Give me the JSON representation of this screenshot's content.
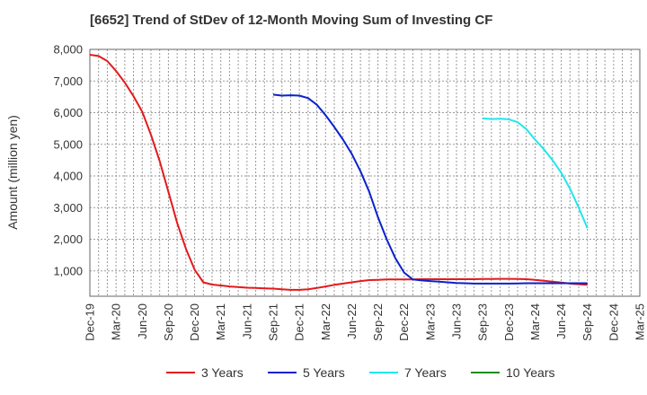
{
  "chart_data": {
    "type": "line",
    "title": "[6652]  Trend of StDev of 12-Month Moving Sum of Investing CF",
    "xlabel": "",
    "ylabel": "Amount (million yen)",
    "ylim": [
      200,
      8000
    ],
    "yticks": [
      1000,
      2000,
      3000,
      4000,
      5000,
      6000,
      7000,
      8000
    ],
    "ytick_labels": [
      "1,000",
      "2,000",
      "3,000",
      "4,000",
      "5,000",
      "6,000",
      "7,000",
      "8,000"
    ],
    "x_start": "Dec-19",
    "x_end": "Mar-25",
    "xtick_labels": [
      "Dec-19",
      "Mar-20",
      "Jun-20",
      "Sep-20",
      "Dec-20",
      "Mar-21",
      "Jun-21",
      "Sep-21",
      "Dec-21",
      "Mar-22",
      "Jun-22",
      "Sep-22",
      "Dec-22",
      "Mar-23",
      "Jun-23",
      "Sep-23",
      "Dec-23",
      "Mar-24",
      "Jun-24",
      "Sep-24",
      "Dec-24",
      "Mar-25"
    ],
    "grid": true,
    "legend_position": "bottom",
    "series": [
      {
        "name": "3 Years",
        "color": "#e31a1c",
        "points": [
          [
            "Dec-19",
            7830
          ],
          [
            "Jan-20",
            7790
          ],
          [
            "Feb-20",
            7630
          ],
          [
            "Mar-20",
            7320
          ],
          [
            "Apr-20",
            6950
          ],
          [
            "May-20",
            6520
          ],
          [
            "Jun-20",
            6030
          ],
          [
            "Jul-20",
            5300
          ],
          [
            "Aug-20",
            4470
          ],
          [
            "Sep-20",
            3500
          ],
          [
            "Oct-20",
            2520
          ],
          [
            "Nov-20",
            1700
          ],
          [
            "Dec-20",
            1040
          ],
          [
            "Jan-21",
            640
          ],
          [
            "Feb-21",
            570
          ],
          [
            "Mar-21",
            540
          ],
          [
            "Apr-21",
            510
          ],
          [
            "May-21",
            490
          ],
          [
            "Jun-21",
            470
          ],
          [
            "Jul-21",
            460
          ],
          [
            "Aug-21",
            450
          ],
          [
            "Sep-21",
            440
          ],
          [
            "Oct-21",
            420
          ],
          [
            "Nov-21",
            400
          ],
          [
            "Dec-21",
            400
          ],
          [
            "Jan-22",
            420
          ],
          [
            "Feb-22",
            460
          ],
          [
            "Mar-22",
            510
          ],
          [
            "Apr-22",
            560
          ],
          [
            "May-22",
            600
          ],
          [
            "Jun-22",
            640
          ],
          [
            "Jul-22",
            680
          ],
          [
            "Aug-22",
            710
          ],
          [
            "Sep-22",
            720
          ],
          [
            "Oct-22",
            730
          ],
          [
            "Nov-22",
            730
          ],
          [
            "Dec-22",
            730
          ],
          [
            "Jan-23",
            730
          ],
          [
            "Feb-23",
            740
          ],
          [
            "Mar-23",
            740
          ],
          [
            "Apr-23",
            740
          ],
          [
            "May-23",
            740
          ],
          [
            "Jun-23",
            740
          ],
          [
            "Jul-23",
            740
          ],
          [
            "Aug-23",
            740
          ],
          [
            "Sep-23",
            745
          ],
          [
            "Oct-23",
            745
          ],
          [
            "Nov-23",
            750
          ],
          [
            "Dec-23",
            750
          ],
          [
            "Jan-24",
            745
          ],
          [
            "Feb-24",
            740
          ],
          [
            "Mar-24",
            720
          ],
          [
            "Apr-24",
            690
          ],
          [
            "May-24",
            660
          ],
          [
            "Jun-24",
            630
          ],
          [
            "Jul-24",
            600
          ],
          [
            "Aug-24",
            580
          ],
          [
            "Sep-24",
            560
          ]
        ]
      },
      {
        "name": "5 Years",
        "color": "#0a22cc",
        "points": [
          [
            "Sep-21",
            6570
          ],
          [
            "Oct-21",
            6540
          ],
          [
            "Nov-21",
            6550
          ],
          [
            "Dec-21",
            6540
          ],
          [
            "Jan-22",
            6460
          ],
          [
            "Feb-22",
            6250
          ],
          [
            "Mar-22",
            5920
          ],
          [
            "Apr-22",
            5550
          ],
          [
            "May-22",
            5150
          ],
          [
            "Jun-22",
            4700
          ],
          [
            "Jul-22",
            4150
          ],
          [
            "Aug-22",
            3500
          ],
          [
            "Sep-22",
            2700
          ],
          [
            "Oct-22",
            2000
          ],
          [
            "Nov-22",
            1400
          ],
          [
            "Dec-22",
            950
          ],
          [
            "Jan-23",
            730
          ],
          [
            "Feb-23",
            700
          ],
          [
            "Mar-23",
            680
          ],
          [
            "Apr-23",
            660
          ],
          [
            "May-23",
            640
          ],
          [
            "Jun-23",
            620
          ],
          [
            "Jul-23",
            610
          ],
          [
            "Aug-23",
            600
          ],
          [
            "Sep-23",
            600
          ],
          [
            "Oct-23",
            600
          ],
          [
            "Nov-23",
            600
          ],
          [
            "Dec-23",
            600
          ],
          [
            "Jan-24",
            605
          ],
          [
            "Feb-24",
            610
          ],
          [
            "Mar-24",
            610
          ],
          [
            "Apr-24",
            610
          ],
          [
            "May-24",
            610
          ],
          [
            "Jun-24",
            610
          ],
          [
            "Jul-24",
            610
          ],
          [
            "Aug-24",
            610
          ],
          [
            "Sep-24",
            610
          ]
        ]
      },
      {
        "name": "7 Years",
        "color": "#22e6ee",
        "points": [
          [
            "Sep-23",
            5820
          ],
          [
            "Oct-23",
            5800
          ],
          [
            "Nov-23",
            5810
          ],
          [
            "Dec-23",
            5790
          ],
          [
            "Jan-24",
            5700
          ],
          [
            "Feb-24",
            5480
          ],
          [
            "Mar-24",
            5150
          ],
          [
            "Apr-24",
            4850
          ],
          [
            "May-24",
            4500
          ],
          [
            "Jun-24",
            4100
          ],
          [
            "Jul-24",
            3600
          ],
          [
            "Aug-24",
            3000
          ],
          [
            "Sep-24",
            2350
          ]
        ]
      },
      {
        "name": "10 Years",
        "color": "#1e8c1e",
        "points": []
      }
    ]
  }
}
